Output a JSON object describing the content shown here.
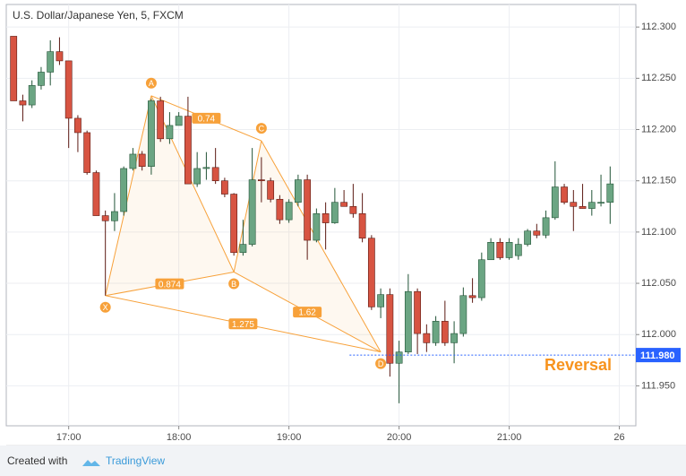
{
  "chart_data": {
    "type": "candlestick",
    "title": "U.S. Dollar/Japanese Yen, 5, FXCM",
    "up_color": "#6ba583",
    "down_color": "#d75442",
    "x": [
      "16:30",
      "16:35",
      "16:40",
      "16:45",
      "16:50",
      "16:55",
      "17:00",
      "17:05",
      "17:10",
      "17:15",
      "17:20",
      "17:25",
      "17:30",
      "17:35",
      "17:40",
      "17:45",
      "17:50",
      "17:55",
      "18:00",
      "18:05",
      "18:10",
      "18:15",
      "18:20",
      "18:25",
      "18:30",
      "18:35",
      "18:40",
      "18:45",
      "18:50",
      "18:55",
      "19:00",
      "19:05",
      "19:10",
      "19:15",
      "19:20",
      "19:25",
      "19:30",
      "19:35",
      "19:40",
      "19:45",
      "19:50",
      "19:55",
      "20:00",
      "20:05",
      "20:10",
      "20:15",
      "20:20",
      "20:25",
      "20:30",
      "20:35",
      "20:40",
      "20:45",
      "20:50",
      "20:55",
      "21:00",
      "21:05",
      "21:10",
      "21:15",
      "21:20",
      "21:25",
      "21:30",
      "21:35",
      "21:40",
      "21:45",
      "21:50",
      "21:55"
    ],
    "open": [
      112.291,
      112.228,
      112.224,
      112.243,
      112.256,
      112.276,
      112.267,
      112.211,
      112.197,
      112.158,
      112.116,
      112.111,
      112.12,
      112.162,
      112.176,
      112.164,
      112.228,
      112.191,
      112.204,
      112.213,
      112.147,
      112.162,
      112.163,
      112.15,
      112.137,
      112.08,
      112.088,
      112.151,
      112.15,
      112.132,
      112.112,
      112.129,
      112.151,
      112.092,
      112.118,
      112.109,
      112.129,
      112.125,
      112.118,
      112.094,
      112.027,
      112.039,
      111.972,
      111.983,
      112.042,
      112.001,
      111.992,
      112.013,
      111.992,
      112.001,
      112.038,
      112.036,
      112.073,
      112.09,
      112.075,
      112.077,
      112.088,
      112.101,
      112.097,
      112.114,
      112.144,
      112.129,
      112.125,
      112.123,
      112.129,
      112.129
    ],
    "high": [
      112.291,
      112.234,
      112.248,
      112.261,
      112.287,
      112.29,
      112.267,
      112.214,
      112.199,
      112.16,
      112.121,
      112.138,
      112.164,
      112.182,
      112.179,
      112.23,
      112.232,
      112.217,
      112.217,
      112.232,
      112.178,
      112.178,
      112.182,
      112.153,
      112.138,
      112.112,
      112.182,
      112.173,
      112.153,
      112.136,
      112.132,
      112.156,
      112.156,
      112.123,
      112.129,
      112.143,
      112.141,
      112.147,
      112.138,
      112.097,
      112.045,
      112.045,
      111.994,
      112.059,
      112.045,
      112.01,
      112.018,
      112.033,
      112.013,
      112.046,
      112.055,
      112.08,
      112.094,
      112.094,
      112.094,
      112.094,
      112.103,
      112.108,
      112.121,
      112.169,
      112.147,
      112.141,
      112.147,
      112.141,
      112.156,
      112.164
    ],
    "low": [
      112.228,
      112.208,
      112.221,
      112.239,
      112.243,
      112.263,
      112.182,
      112.178,
      112.156,
      112.116,
      112.038,
      112.101,
      112.116,
      112.16,
      112.16,
      112.156,
      112.188,
      112.186,
      112.204,
      112.147,
      112.144,
      112.151,
      112.147,
      112.134,
      112.077,
      112.077,
      112.086,
      112.129,
      112.129,
      112.108,
      112.109,
      112.125,
      112.073,
      112.09,
      112.083,
      112.108,
      112.125,
      112.114,
      112.09,
      112.024,
      112.016,
      111.959,
      111.933,
      111.981,
      111.981,
      111.983,
      111.989,
      111.989,
      111.972,
      111.998,
      112.031,
      112.033,
      112.073,
      112.073,
      112.073,
      112.073,
      112.086,
      112.094,
      112.094,
      112.112,
      112.127,
      112.101,
      112.123,
      112.116,
      112.125,
      112.108
    ],
    "close": [
      112.228,
      112.224,
      112.243,
      112.256,
      112.276,
      112.267,
      112.211,
      112.197,
      112.158,
      112.116,
      112.111,
      112.12,
      112.162,
      112.176,
      112.164,
      112.228,
      112.191,
      112.204,
      112.213,
      112.147,
      112.162,
      112.163,
      112.15,
      112.137,
      112.08,
      112.088,
      112.151,
      112.15,
      112.132,
      112.112,
      112.129,
      112.151,
      112.092,
      112.118,
      112.109,
      112.129,
      112.125,
      112.118,
      112.094,
      112.027,
      112.039,
      111.972,
      111.983,
      112.042,
      112.001,
      111.992,
      112.013,
      111.992,
      112.001,
      112.038,
      112.036,
      112.073,
      112.09,
      112.075,
      112.09,
      112.088,
      112.101,
      112.097,
      112.114,
      112.144,
      112.129,
      112.125,
      112.123,
      112.129,
      112.129,
      112.147
    ],
    "xlim": [
      "16:26",
      "22:09"
    ],
    "xticks": [
      "17:00",
      "18:00",
      "19:00",
      "20:00",
      "21:00",
      {
        "value": "22:00",
        "label": "26"
      }
    ],
    "ylim": [
      111.911,
      112.322
    ],
    "yticks": [
      {
        "value": 111.95,
        "label": "111.950"
      },
      {
        "value": 112,
        "label": "112.000"
      },
      {
        "value": 112.05,
        "label": "112.050"
      },
      {
        "value": 112.1,
        "label": "112.100"
      },
      {
        "value": 112.15,
        "label": "112.150"
      },
      {
        "value": 112.2,
        "label": "112.200"
      },
      {
        "value": 112.25,
        "label": "112.250"
      },
      {
        "value": 112.3,
        "label": "112.300"
      }
    ],
    "grid": true,
    "price_line": {
      "value": 111.98,
      "label": "111.980",
      "color": "#2962ff"
    },
    "pattern": {
      "color": "#f7a13a",
      "points": [
        {
          "label": "X",
          "x": "17:20",
          "y": 112.038
        },
        {
          "label": "A",
          "x": "17:45",
          "y": 112.233
        },
        {
          "label": "B",
          "x": "18:30",
          "y": 112.061
        },
        {
          "label": "C",
          "x": "18:45",
          "y": 112.189
        },
        {
          "label": "D",
          "x": "19:50",
          "y": 111.983
        }
      ],
      "ratios": [
        "0.74",
        "0.874",
        "1.275",
        "1.62"
      ]
    },
    "annotation": "Reversal"
  },
  "footer": {
    "prefix": "Created with",
    "brand": "TradingView"
  }
}
